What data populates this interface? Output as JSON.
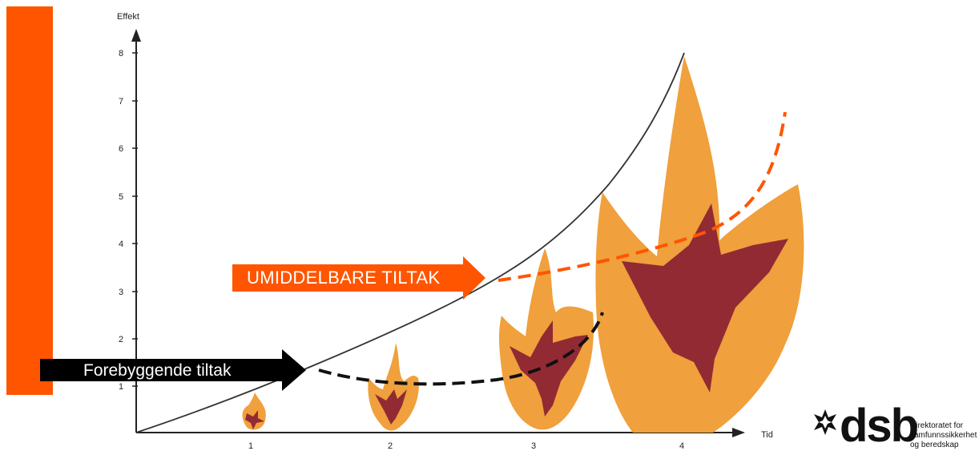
{
  "colors": {
    "accent_orange": "#ff5500",
    "flame_outer": "#f0a03c",
    "flame_inner": "#922a33",
    "black": "#000000",
    "curve": "#333333"
  },
  "axis": {
    "y_label": "Effekt",
    "x_label": "Tid",
    "y_ticks": [
      "1",
      "2",
      "3",
      "4",
      "5",
      "6",
      "7",
      "8"
    ],
    "x_ticks": [
      "1",
      "2",
      "3",
      "4"
    ]
  },
  "arrows": {
    "umiddelbare": "UMIDDELBARE TILTAK",
    "forebyggende": "Forebyggende tiltak"
  },
  "logo": {
    "word": "dsb",
    "line1": "Direktoratet for",
    "line2": "samfunnssikkerhet",
    "line3": "og beredskap",
    "icon": "dsb-mark-icon"
  },
  "flames": [
    {
      "stage": "1",
      "icon": "flame-icon"
    },
    {
      "stage": "2",
      "icon": "flame-icon"
    },
    {
      "stage": "3",
      "icon": "flame-icon"
    },
    {
      "stage": "4",
      "icon": "flame-icon"
    }
  ]
}
